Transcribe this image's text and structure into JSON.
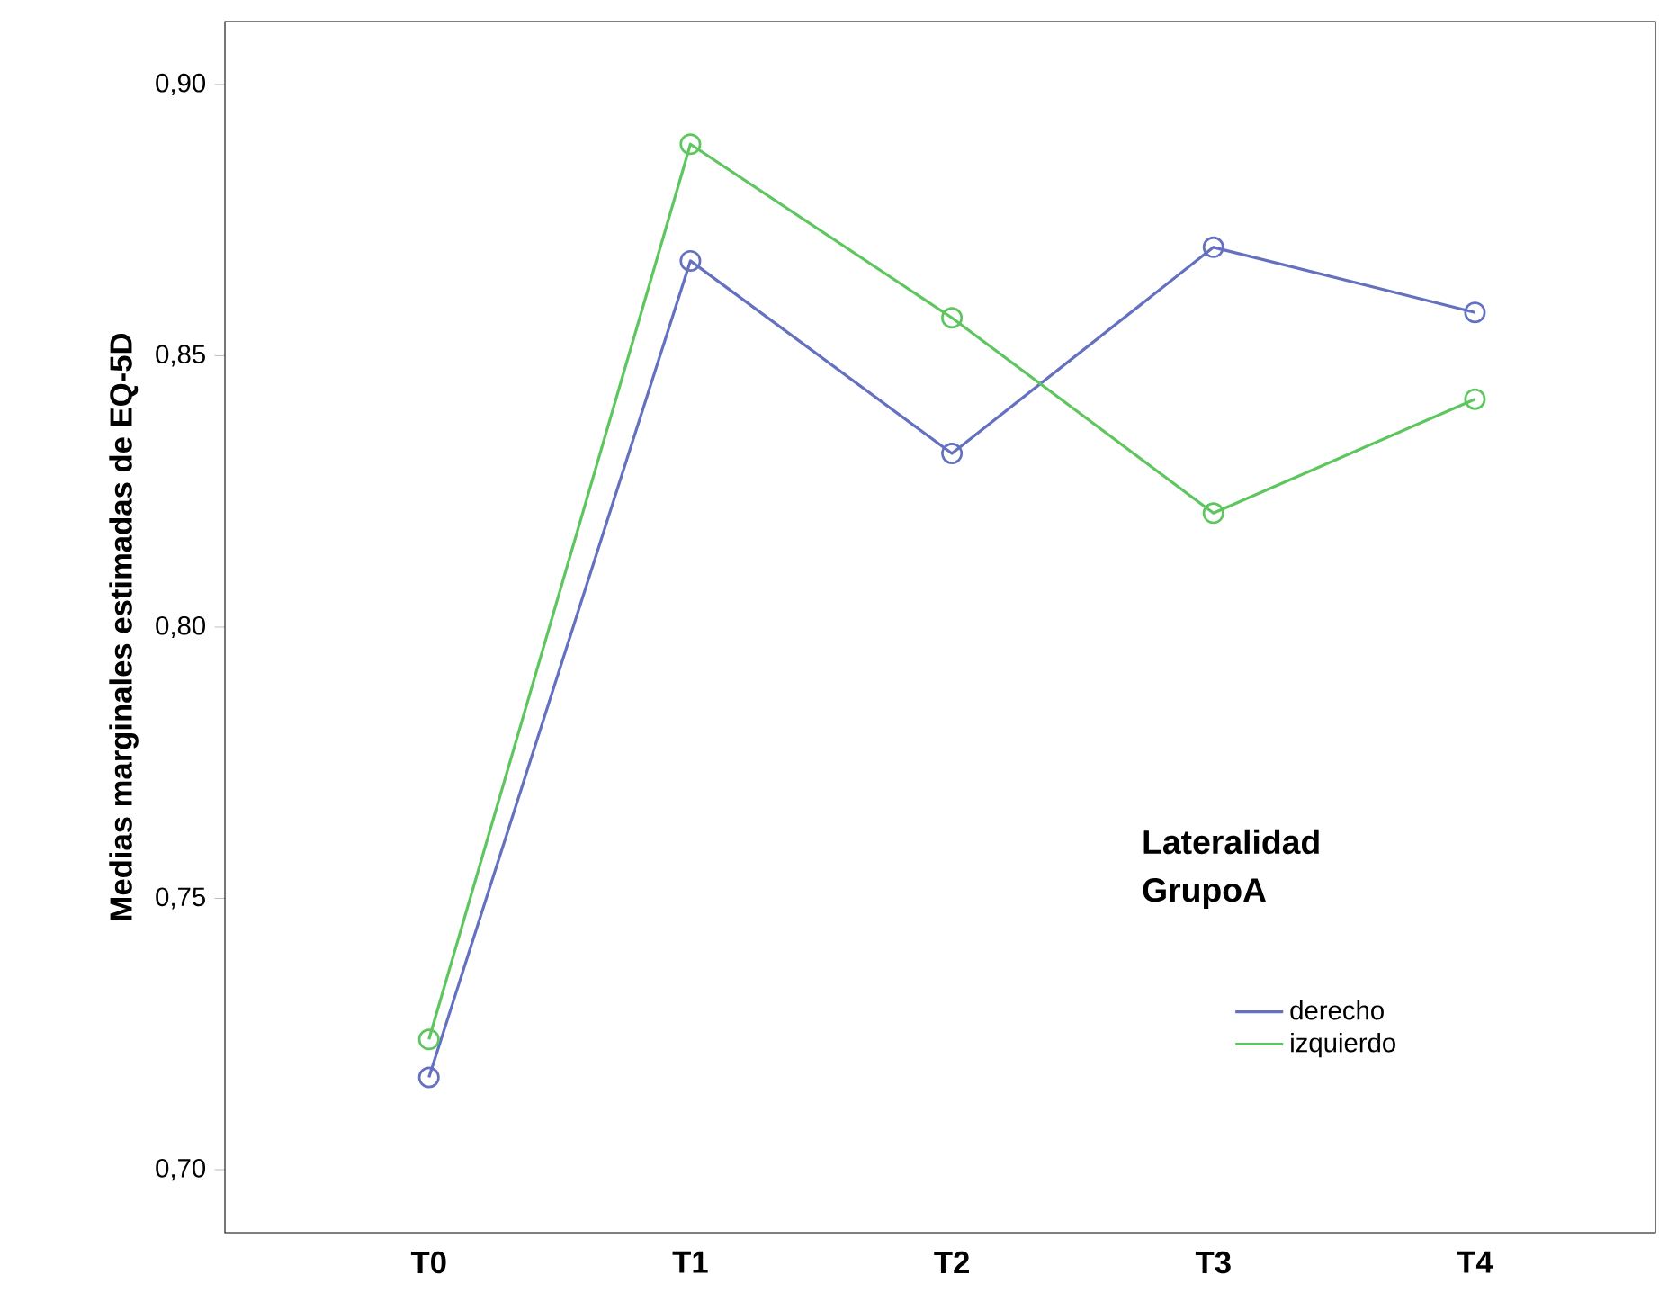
{
  "chart_data": {
    "type": "line",
    "ylabel": "Medias marginales estimadas de EQ-5D",
    "legend_title": "Lateralidad GrupoA",
    "categories": [
      "T0",
      "T1",
      "T2",
      "T3",
      "T4"
    ],
    "series": [
      {
        "name": "derecho",
        "color": "#6470c0",
        "values": [
          0.717,
          0.8675,
          0.832,
          0.87,
          0.858
        ]
      },
      {
        "name": "izquierdo",
        "color": "#5ec65e",
        "values": [
          0.724,
          0.889,
          0.857,
          0.821,
          0.842
        ]
      }
    ],
    "ylim": [
      0.6884,
      0.9116
    ],
    "yticks": [
      {
        "value": 0.7,
        "label": "0,70"
      },
      {
        "value": 0.75,
        "label": "0,75"
      },
      {
        "value": 0.8,
        "label": "0,80"
      },
      {
        "value": 0.85,
        "label": "0,85"
      },
      {
        "value": 0.9,
        "label": "0,90"
      }
    ],
    "grid": false,
    "legend": "bottom right",
    "marker": "circle",
    "line_style": "solid"
  }
}
